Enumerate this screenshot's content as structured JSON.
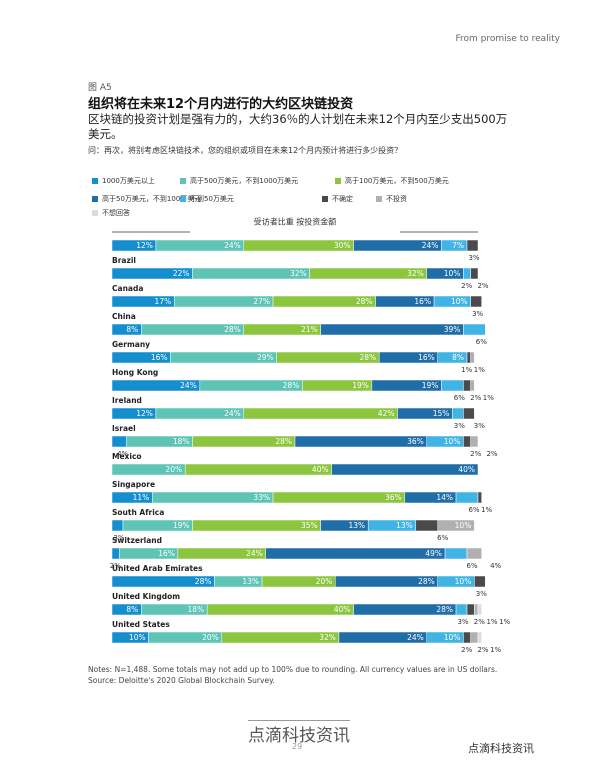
{
  "header": {
    "running_title": "From promise to reality",
    "figure_no": "图 A5",
    "title": "组织将在未来12个月内进行的大约区块链投资",
    "subtitle": "区块链的投资计划是强有力的，大约36％的人计划在未来12个月内至少支出500万美元。",
    "question": "问：再次，将别考虑区块链技术，您的组织或项目在未来12个月内预计将进行多少投资？"
  },
  "chart_data": {
    "type": "stacked-bar-horizontal",
    "title": "受访者比重 按投资金额",
    "xlim": [
      0,
      100
    ],
    "categories": [
      null,
      "Brazil",
      "Canada",
      "China",
      "Germany",
      "Hong Kong",
      "Ireland",
      "Israel",
      "Mexico",
      "Singapore",
      "South Africa",
      "Switzerland",
      "United Arab Emirates",
      "United Kingdom",
      "United States"
    ],
    "series": [
      {
        "name": "1000万美元以上",
        "color": "#148ecf",
        "values": [
          12,
          22,
          17,
          8,
          16,
          24,
          12,
          4,
          0,
          11,
          3,
          2,
          28,
          8,
          10
        ],
        "value_labels": [
          "12%",
          "22%",
          "17%",
          "8%",
          "16%",
          "24%",
          "12%",
          "4%",
          null,
          "11%",
          "3%",
          "2%",
          "28%",
          "8%",
          "10%"
        ]
      },
      {
        "name": "高于500万美元，不到1000万美元",
        "color": "#5ec4b6",
        "values": [
          24,
          32,
          27,
          28,
          29,
          28,
          24,
          18,
          20,
          33,
          19,
          16,
          13,
          18,
          20
        ],
        "value_labels": [
          "24%",
          "32%",
          "27%",
          "28%",
          "29%",
          "28%",
          "24%",
          "18%",
          "20%",
          "33%",
          "19%",
          "16%",
          "13%",
          "18%",
          "20%"
        ]
      },
      {
        "name": "高于100万美元，不到500万美元",
        "color": "#8cc63f",
        "values": [
          30,
          32,
          28,
          21,
          28,
          19,
          42,
          28,
          40,
          36,
          35,
          24,
          20,
          40,
          32
        ],
        "value_labels": [
          "30%",
          "32%",
          "28%",
          "21%",
          "28%",
          "19%",
          "42%",
          "28%",
          "40%",
          "36%",
          "35%",
          "24%",
          "20%",
          "40%",
          "32%"
        ]
      },
      {
        "name": "高于50万美元，不到100万美元",
        "color": "#1f6ea8",
        "values": [
          24,
          10,
          16,
          39,
          16,
          19,
          15,
          36,
          40,
          14,
          13,
          49,
          28,
          28,
          24
        ],
        "value_labels": [
          "24%",
          "10%",
          "16%",
          "39%",
          "16%",
          "19%",
          "15%",
          "36%",
          "40%",
          "14%",
          "13%",
          "49%",
          "28%",
          "28%",
          "24%"
        ]
      },
      {
        "name": "不到50万美元",
        "color": "#3fb4e5",
        "values": [
          7,
          2,
          10,
          6,
          8,
          6,
          3,
          10,
          0,
          6,
          13,
          6,
          10,
          3,
          10
        ],
        "value_labels": [
          "7%",
          "2%",
          "10%",
          "6%",
          "8%",
          "6%",
          "3%",
          "10%",
          null,
          "6%",
          "13%",
          "6%",
          "10%",
          "3%",
          "10%"
        ]
      },
      {
        "name": "不确定",
        "color": "#4a4a4a",
        "values": [
          3,
          2,
          3,
          0,
          1,
          2,
          3,
          2,
          0,
          1,
          6,
          0,
          3,
          2,
          2
        ],
        "value_labels": [
          "3%",
          "2%",
          "3%",
          null,
          "1%",
          "2%",
          "3%",
          "2%",
          null,
          "1%",
          "6%",
          null,
          "3%",
          "2%",
          "2%"
        ]
      },
      {
        "name": "不投资",
        "color": "#b0b0b0",
        "values": [
          0,
          0,
          0,
          0,
          1,
          1,
          0,
          2,
          0,
          0,
          10,
          4,
          0,
          1,
          2
        ],
        "value_labels": [
          null,
          null,
          null,
          null,
          "1%",
          "1%",
          null,
          "2%",
          null,
          null,
          "10%",
          "4%",
          null,
          "1%",
          "2%"
        ]
      },
      {
        "name": "不想回答",
        "color": "#dcdcdc",
        "values": [
          0,
          0,
          0,
          0,
          0,
          0,
          0,
          0,
          0,
          0,
          0,
          0,
          0,
          1,
          1
        ],
        "value_labels": [
          null,
          null,
          null,
          null,
          null,
          null,
          null,
          null,
          null,
          null,
          null,
          null,
          null,
          "1%",
          "1%"
        ]
      }
    ]
  },
  "notes": "Notes: N=1,488. Some totals may not add up to 100% due to rounding. All currency values are in US dollars. Source: Deloitte's 2020 Global Blockchain Survey.",
  "footer": {
    "watermark": "点滴科技资讯",
    "page": "29",
    "wechat": "点滴科技资讯"
  }
}
